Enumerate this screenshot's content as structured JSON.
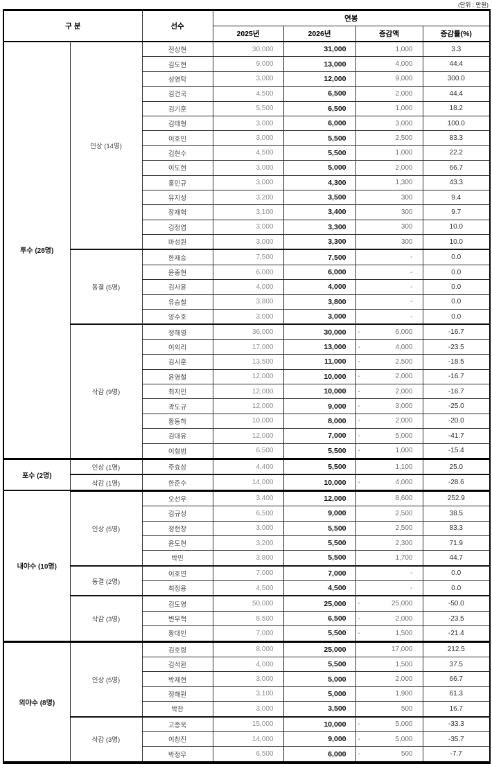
{
  "unit_note": "(단위 : 만원)",
  "header": {
    "category": "구  분",
    "player": "선수",
    "salary": "연봉",
    "y2025": "2025년",
    "y2026": "2026년",
    "diff": "증감액",
    "rate": "증감률(%)"
  },
  "sections": [
    {
      "label": "투수 (28명)",
      "subgroups": [
        {
          "label": "인상 (14명)",
          "rows": [
            {
              "name": "전상현",
              "y2025": "30,000",
              "y2026": "31,000",
              "sign": "",
              "diff": "1,000",
              "rate": "3.3"
            },
            {
              "name": "김도현",
              "y2025": "9,000",
              "y2026": "13,000",
              "sign": "",
              "diff": "4,000",
              "rate": "44.4"
            },
            {
              "name": "성영탁",
              "y2025": "3,000",
              "y2026": "12,000",
              "sign": "",
              "diff": "9,000",
              "rate": "300.0"
            },
            {
              "name": "김건국",
              "y2025": "4,500",
              "y2026": "6,500",
              "sign": "",
              "diff": "2,000",
              "rate": "44.4"
            },
            {
              "name": "김기훈",
              "y2025": "5,500",
              "y2026": "6,500",
              "sign": "",
              "diff": "1,000",
              "rate": "18.2"
            },
            {
              "name": "김태형",
              "y2025": "3,000",
              "y2026": "6,000",
              "sign": "",
              "diff": "3,000",
              "rate": "100.0"
            },
            {
              "name": "이호민",
              "y2025": "3,000",
              "y2026": "5,500",
              "sign": "",
              "diff": "2,500",
              "rate": "83.3"
            },
            {
              "name": "김현수",
              "y2025": "4,500",
              "y2026": "5,500",
              "sign": "",
              "diff": "1,000",
              "rate": "22.2"
            },
            {
              "name": "이도현",
              "y2025": "3,000",
              "y2026": "5,000",
              "sign": "",
              "diff": "2,000",
              "rate": "66.7"
            },
            {
              "name": "홍민규",
              "y2025": "3,000",
              "y2026": "4,300",
              "sign": "",
              "diff": "1,300",
              "rate": "43.3"
            },
            {
              "name": "유지성",
              "y2025": "3,200",
              "y2026": "3,500",
              "sign": "",
              "diff": "300",
              "rate": "9.4"
            },
            {
              "name": "장재혁",
              "y2025": "3,100",
              "y2026": "3,400",
              "sign": "",
              "diff": "300",
              "rate": "9.7"
            },
            {
              "name": "김정엽",
              "y2025": "3,000",
              "y2026": "3,300",
              "sign": "",
              "diff": "300",
              "rate": "10.0"
            },
            {
              "name": "마성원",
              "y2025": "3,000",
              "y2026": "3,300",
              "sign": "",
              "diff": "300",
              "rate": "10.0"
            }
          ]
        },
        {
          "label": "동결 (5명)",
          "rows": [
            {
              "name": "한재승",
              "y2025": "7,500",
              "y2026": "7,500",
              "sign": "",
              "diff": "-",
              "rate": "0.0"
            },
            {
              "name": "윤중현",
              "y2025": "6,000",
              "y2026": "6,000",
              "sign": "",
              "diff": "-",
              "rate": "0.0"
            },
            {
              "name": "김사윤",
              "y2025": "4,000",
              "y2026": "4,000",
              "sign": "",
              "diff": "-",
              "rate": "0.0"
            },
            {
              "name": "유승철",
              "y2025": "3,800",
              "y2026": "3,800",
              "sign": "",
              "diff": "-",
              "rate": "0.0"
            },
            {
              "name": "양수호",
              "y2025": "3,000",
              "y2026": "3,000",
              "sign": "",
              "diff": "-",
              "rate": "0.0"
            }
          ]
        },
        {
          "label": "삭감 (9명)",
          "rows": [
            {
              "name": "정해영",
              "y2025": "36,000",
              "y2026": "30,000",
              "sign": "-",
              "diff": "6,000",
              "rate": "-16.7"
            },
            {
              "name": "이의리",
              "y2025": "17,000",
              "y2026": "13,000",
              "sign": "-",
              "diff": "4,000",
              "rate": "-23.5"
            },
            {
              "name": "김시훈",
              "y2025": "13,500",
              "y2026": "11,000",
              "sign": "-",
              "diff": "2,500",
              "rate": "-18.5"
            },
            {
              "name": "윤영철",
              "y2025": "12,000",
              "y2026": "10,000",
              "sign": "-",
              "diff": "2,000",
              "rate": "-16.7"
            },
            {
              "name": "최지민",
              "y2025": "12,000",
              "y2026": "10,000",
              "sign": "-",
              "diff": "2,000",
              "rate": "-16.7"
            },
            {
              "name": "곽도규",
              "y2025": "12,000",
              "y2026": "9,000",
              "sign": "-",
              "diff": "3,000",
              "rate": "-25.0"
            },
            {
              "name": "황동하",
              "y2025": "10,000",
              "y2026": "8,000",
              "sign": "-",
              "diff": "2,000",
              "rate": "-20.0"
            },
            {
              "name": "김대유",
              "y2025": "12,000",
              "y2026": "7,000",
              "sign": "-",
              "diff": "5,000",
              "rate": "-41.7"
            },
            {
              "name": "이형범",
              "y2025": "6,500",
              "y2026": "5,500",
              "sign": "-",
              "diff": "1,000",
              "rate": "-15.4"
            }
          ]
        }
      ]
    },
    {
      "label": "포수 (2명)",
      "subgroups": [
        {
          "label": "인상 (1명)",
          "rows": [
            {
              "name": "주효상",
              "y2025": "4,400",
              "y2026": "5,500",
              "sign": "",
              "diff": "1,100",
              "rate": "25.0"
            }
          ]
        },
        {
          "label": "삭감 (1명)",
          "rows": [
            {
              "name": "한준수",
              "y2025": "14,000",
              "y2026": "10,000",
              "sign": "-",
              "diff": "4,000",
              "rate": "-28.6"
            }
          ]
        }
      ]
    },
    {
      "label": "내야수 (10명)",
      "subgroups": [
        {
          "label": "인상 (5명)",
          "rows": [
            {
              "name": "오선우",
              "y2025": "3,400",
              "y2026": "12,000",
              "sign": "",
              "diff": "8,600",
              "rate": "252.9"
            },
            {
              "name": "김규성",
              "y2025": "6,500",
              "y2026": "9,000",
              "sign": "",
              "diff": "2,500",
              "rate": "38.5"
            },
            {
              "name": "정현창",
              "y2025": "3,000",
              "y2026": "5,500",
              "sign": "",
              "diff": "2,500",
              "rate": "83.3"
            },
            {
              "name": "윤도현",
              "y2025": "3,200",
              "y2026": "5,500",
              "sign": "",
              "diff": "2,300",
              "rate": "71.9"
            },
            {
              "name": "박민",
              "y2025": "3,800",
              "y2026": "5,500",
              "sign": "",
              "diff": "1,700",
              "rate": "44.7"
            }
          ]
        },
        {
          "label": "동결 (2명)",
          "rows": [
            {
              "name": "이호연",
              "y2025": "7,000",
              "y2026": "7,000",
              "sign": "",
              "diff": "-",
              "rate": "0.0"
            },
            {
              "name": "최정용",
              "y2025": "4,500",
              "y2026": "4,500",
              "sign": "",
              "diff": "-",
              "rate": "0.0"
            }
          ]
        },
        {
          "label": "삭감 (3명)",
          "rows": [
            {
              "name": "김도영",
              "y2025": "50,000",
              "y2026": "25,000",
              "sign": "-",
              "diff": "25,000",
              "rate": "-50.0"
            },
            {
              "name": "변우혁",
              "y2025": "8,500",
              "y2026": "6,500",
              "sign": "-",
              "diff": "2,000",
              "rate": "-23.5"
            },
            {
              "name": "황대인",
              "y2025": "7,000",
              "y2026": "5,500",
              "sign": "-",
              "diff": "1,500",
              "rate": "-21.4"
            }
          ]
        }
      ]
    },
    {
      "label": "외야수 (8명)",
      "subgroups": [
        {
          "label": "인상 (5명)",
          "rows": [
            {
              "name": "김호령",
              "y2025": "8,000",
              "y2026": "25,000",
              "sign": "",
              "diff": "17,000",
              "rate": "212.5"
            },
            {
              "name": "김석환",
              "y2025": "4,000",
              "y2026": "5,500",
              "sign": "",
              "diff": "1,500",
              "rate": "37.5"
            },
            {
              "name": "박재현",
              "y2025": "3,000",
              "y2026": "5,000",
              "sign": "",
              "diff": "2,000",
              "rate": "66.7"
            },
            {
              "name": "정해원",
              "y2025": "3,100",
              "y2026": "5,000",
              "sign": "",
              "diff": "1,900",
              "rate": "61.3"
            },
            {
              "name": "박찬",
              "y2025": "3,000",
              "y2026": "3,500",
              "sign": "",
              "diff": "500",
              "rate": "16.7"
            }
          ]
        },
        {
          "label": "삭감 (3명)",
          "rows": [
            {
              "name": "고종욱",
              "y2025": "15,000",
              "y2026": "10,000",
              "sign": "-",
              "diff": "5,000",
              "rate": "-33.3"
            },
            {
              "name": "이창진",
              "y2025": "14,000",
              "y2026": "9,000",
              "sign": "-",
              "diff": "5,000",
              "rate": "-35.7"
            },
            {
              "name": "박정우",
              "y2025": "6,500",
              "y2026": "6,000",
              "sign": "-",
              "diff": "500",
              "rate": "-7.7"
            }
          ]
        }
      ]
    }
  ]
}
